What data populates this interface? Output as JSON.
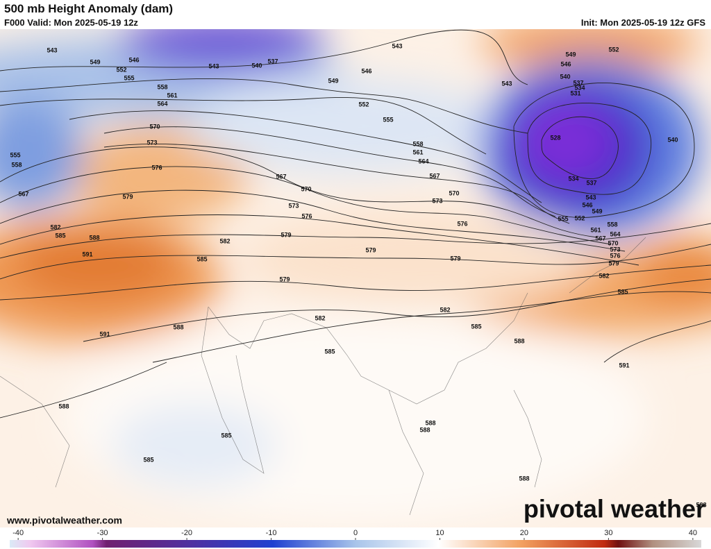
{
  "header": {
    "title": "500 mb Height Anomaly (dam)",
    "valid": "F000 Valid: Mon 2025-05-19 12z",
    "init": "Init: Mon 2025-05-19 12z GFS"
  },
  "footer": {
    "website": "www.pivotalweather.com",
    "logo": "pivotal weather"
  },
  "colorbar": {
    "lim": [
      -41,
      41
    ],
    "ticks": [
      -40,
      -30,
      -20,
      -10,
      0,
      10,
      20,
      30,
      40
    ]
  },
  "contour_labels": [
    543,
    549,
    546,
    552,
    555,
    558,
    561,
    564,
    570,
    573,
    576,
    579,
    582,
    585,
    588,
    591,
    555,
    558,
    567,
    543,
    540,
    537,
    543,
    546,
    549,
    552,
    555,
    558,
    561,
    564,
    567,
    570,
    573,
    576,
    567,
    570,
    573,
    576,
    579,
    582,
    585,
    579,
    579,
    579,
    582,
    582,
    585,
    585,
    588,
    591,
    591,
    588,
    588,
    585,
    585,
    588,
    588,
    588,
    588,
    549,
    552,
    546,
    540,
    537,
    534,
    531,
    543,
    528,
    540,
    534,
    537,
    543,
    546,
    549,
    552,
    555,
    558,
    561,
    564,
    567,
    570,
    573,
    576,
    579,
    582,
    585
  ]
}
